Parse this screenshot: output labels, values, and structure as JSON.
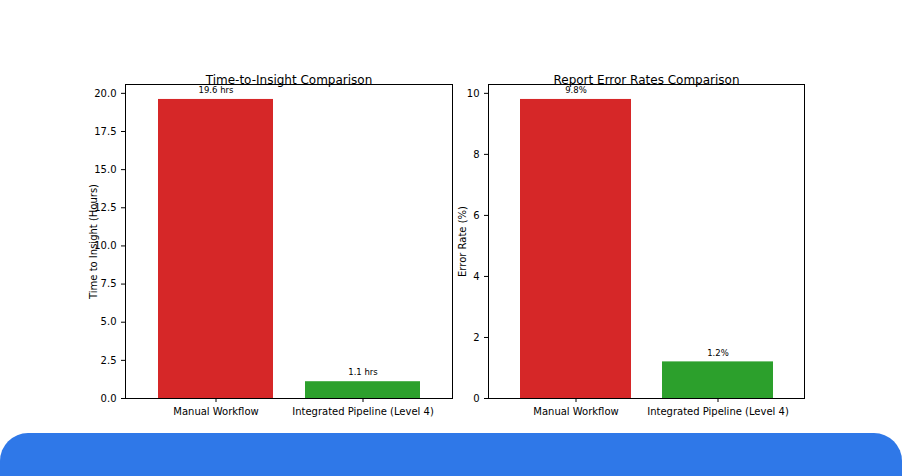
{
  "chart_data": [
    {
      "type": "bar",
      "title": "Time-to-Insight Comparison",
      "y_label": "Time to Insight (Hours)",
      "categories": [
        "Manual Workflow",
        "Integrated Pipeline (Level 4)"
      ],
      "values": [
        19.6,
        1.1
      ],
      "value_labels": [
        "19.6 hrs",
        "1.1 hrs"
      ],
      "colors": [
        "#d62728",
        "#2ca02c"
      ],
      "ylim": [
        0,
        20.58
      ],
      "yticks": [
        {
          "value": 0,
          "label": "0.0"
        },
        {
          "value": 2.5,
          "label": "2.5"
        },
        {
          "value": 5,
          "label": "5.0"
        },
        {
          "value": 7.5,
          "label": "7.5"
        },
        {
          "value": 10,
          "label": "10.0"
        },
        {
          "value": 12.5,
          "label": "12.5"
        },
        {
          "value": 15,
          "label": "15.0"
        },
        {
          "value": 17.5,
          "label": "17.5"
        },
        {
          "value": 20,
          "label": "20.0"
        }
      ],
      "grid": false,
      "data_labels": true
    },
    {
      "type": "bar",
      "title": "Report Error Rates Comparison",
      "y_label": "Error Rate (%)",
      "categories": [
        "Manual Workflow",
        "Integrated Pipeline (Level 4)"
      ],
      "values": [
        9.8,
        1.2
      ],
      "value_labels": [
        "9.8%",
        "1.2%"
      ],
      "colors": [
        "#d62728",
        "#2ca02c"
      ],
      "ylim": [
        0,
        10.29
      ],
      "yticks": [
        0,
        2,
        4,
        6,
        8,
        10
      ],
      "grid": false,
      "data_labels": true
    }
  ]
}
